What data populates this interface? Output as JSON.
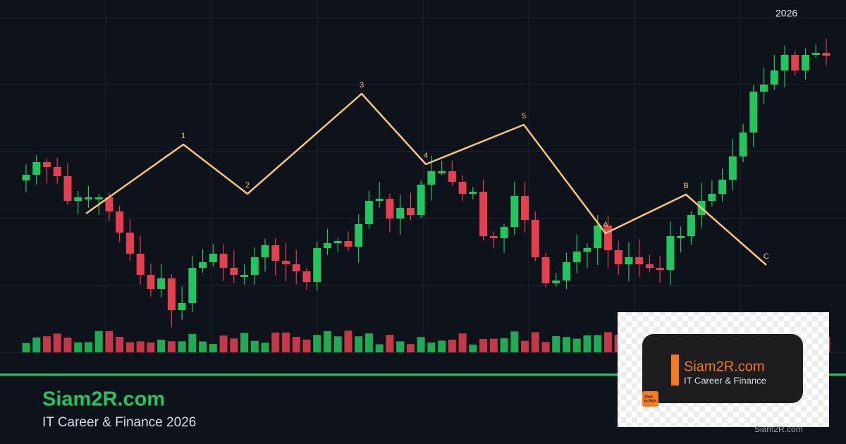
{
  "header": {
    "year": "2026"
  },
  "waves": {
    "labels": [
      "1",
      "2",
      "3",
      "4",
      "5",
      "A",
      "B",
      "C"
    ]
  },
  "footer": {
    "brand": "Siam2R.com",
    "tagline": "IT Career & Finance 2026"
  },
  "watermark": {
    "brand": "Siam2R.com",
    "tagline": "IT Career & Finance",
    "badge": [
      "Siam",
      "to Rich"
    ],
    "url": "Siam2R.com"
  }
}
